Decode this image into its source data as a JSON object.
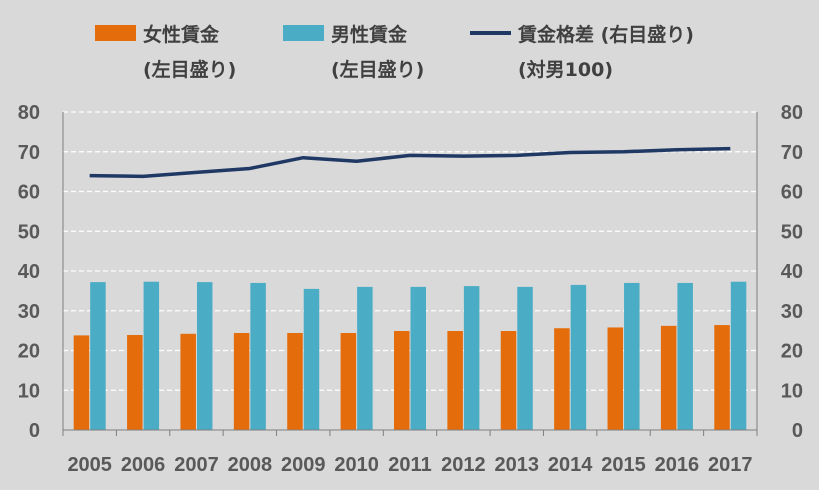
{
  "chart_data": {
    "type": "bar",
    "categories": [
      "2005",
      "2006",
      "2007",
      "2008",
      "2009",
      "2010",
      "2011",
      "2012",
      "2013",
      "2014",
      "2015",
      "2016",
      "2017"
    ],
    "series": [
      {
        "name": "女性賃金",
        "name_line2": "(左目盛り)",
        "kind": "bar",
        "axis": "left",
        "color": "#e46c0a",
        "values": [
          23.8,
          23.9,
          24.2,
          24.4,
          24.4,
          24.4,
          24.9,
          24.9,
          24.9,
          25.6,
          25.8,
          26.2,
          26.4
        ]
      },
      {
        "name": "男性賃金",
        "name_line2": "(左目盛り)",
        "kind": "bar",
        "axis": "left",
        "color": "#4bacc6",
        "values": [
          37.2,
          37.3,
          37.2,
          37.0,
          35.5,
          36.0,
          36.0,
          36.2,
          36.0,
          36.5,
          37.0,
          37.0,
          37.3
        ]
      },
      {
        "name": "賃金格差 (右目盛り)",
        "name_line2": "(対男100)",
        "kind": "line",
        "axis": "right",
        "color": "#1f3864",
        "values": [
          64.0,
          63.8,
          64.8,
          65.8,
          68.5,
          67.6,
          69.1,
          68.9,
          69.1,
          69.8,
          70.0,
          70.5,
          70.8
        ]
      }
    ],
    "y_left": {
      "min": 0,
      "max": 80,
      "ticks": [
        0,
        10,
        20,
        30,
        40,
        50,
        60,
        70,
        80
      ]
    },
    "y_right": {
      "min": 0,
      "max": 80,
      "ticks": [
        0,
        10,
        20,
        30,
        40,
        50,
        60,
        70,
        80
      ]
    },
    "grid": true,
    "legend_position": "top"
  }
}
